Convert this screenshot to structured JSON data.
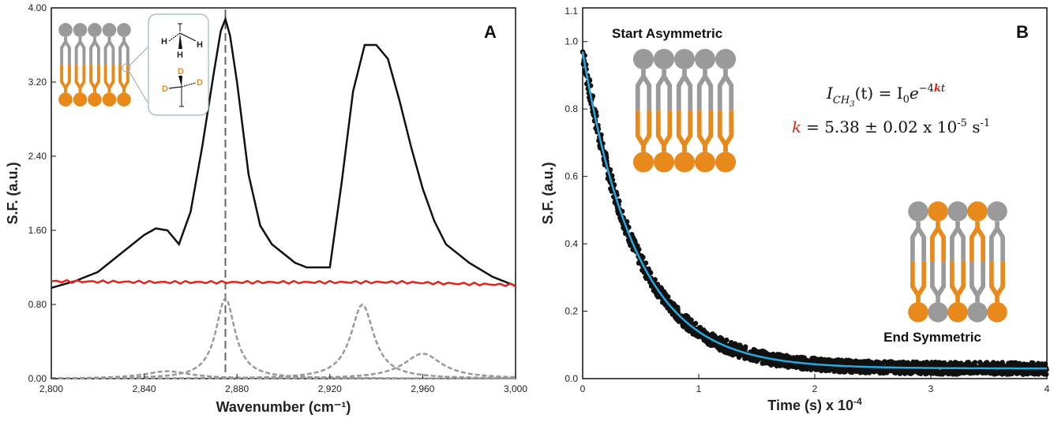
{
  "chart_data": [
    {
      "type": "line",
      "panel_label": "A",
      "xlabel": "Wavenumber (cm⁻¹)",
      "ylabel": "S.F. (a.u.)",
      "xlim": [
        2800,
        3000
      ],
      "ylim": [
        0,
        4.0
      ],
      "xticks": [
        "2,800",
        "2,840",
        "2,880",
        "2,920",
        "2,960",
        "3,000"
      ],
      "yticks": [
        "0.00",
        "0.80",
        "1.60",
        "2.40",
        "3.20",
        "4.00"
      ],
      "vline_x": 2875,
      "series": [
        {
          "color": "#111111",
          "style": "solid",
          "x": [
            2800,
            2810,
            2820,
            2830,
            2840,
            2845,
            2850,
            2855,
            2860,
            2865,
            2870,
            2873,
            2875,
            2877,
            2880,
            2885,
            2890,
            2895,
            2900,
            2905,
            2910,
            2915,
            2920,
            2925,
            2930,
            2935,
            2940,
            2945,
            2950,
            2955,
            2960,
            2965,
            2970,
            2980,
            2990,
            3000
          ],
          "y": [
            0.98,
            1.05,
            1.15,
            1.35,
            1.55,
            1.62,
            1.6,
            1.45,
            1.8,
            2.5,
            3.3,
            3.75,
            3.88,
            3.7,
            3.2,
            2.2,
            1.65,
            1.45,
            1.35,
            1.25,
            1.2,
            1.2,
            1.2,
            2.1,
            3.1,
            3.6,
            3.6,
            3.45,
            3.0,
            2.5,
            2.05,
            1.7,
            1.45,
            1.25,
            1.1,
            1.0
          ]
        },
        {
          "color": "#e1251b",
          "style": "solid",
          "x": [
            2800,
            2850,
            2900,
            2950,
            3000
          ],
          "y": [
            1.05,
            1.04,
            1.04,
            1.04,
            1.01
          ]
        },
        {
          "color": "#999999",
          "style": "dashed",
          "peak_center": 2875,
          "peak_height": 0.87,
          "peak_width": 5
        },
        {
          "color": "#999999",
          "style": "dashed",
          "peak_center": 2934,
          "peak_height": 0.8,
          "peak_width": 6
        },
        {
          "color": "#999999",
          "style": "dashed",
          "peak_center": 2960,
          "peak_height": 0.27,
          "peak_width": 10
        },
        {
          "color": "#999999",
          "style": "dashed",
          "peak_center": 2850,
          "peak_height": 0.08,
          "peak_width": 12
        }
      ],
      "inset_labels": [
        "H",
        "H",
        "H",
        "D",
        "D",
        "D"
      ]
    },
    {
      "type": "scatter",
      "panel_label": "B",
      "xlabel": "Time (s) x 10",
      "xlabel_exp": "-4",
      "ylabel": "S.F. (a.u.)",
      "xlim": [
        0,
        4
      ],
      "ylim": [
        0,
        1.1
      ],
      "xticks": [
        "0",
        "1",
        "2",
        "3",
        "4"
      ],
      "yticks": [
        "0.0",
        "0.2",
        "0.4",
        "0.6",
        "0.8",
        "1.0"
      ],
      "ytick_top": "1.1",
      "fit": {
        "color": "#29a8e0",
        "I0": 0.94,
        "decay_per_unit": 2.15,
        "offset": 0.03,
        "label_lhs": "I",
        "label_sub": "CH",
        "label_sub2": "3",
        "label_rhs": "(t) = I",
        "label_rhs_sub": "0",
        "label_exp": "e",
        "label_power": "−4",
        "label_k": "k",
        "label_t": "t"
      },
      "k_line": {
        "k_symbol": "k",
        "value_text": "= 5.38 ± 0.02 x 10",
        "exp": "-5",
        "unit": " s",
        "unit_exp": "-1"
      },
      "markers_color": "#111111",
      "annotations": {
        "start": "Start Asymmetric",
        "end": "End Symmetric"
      }
    }
  ],
  "colors": {
    "gray_lipid": "#9a9a9a",
    "orange_lipid": "#e8891c",
    "red": "#e1251b",
    "blue": "#29a8e0"
  }
}
